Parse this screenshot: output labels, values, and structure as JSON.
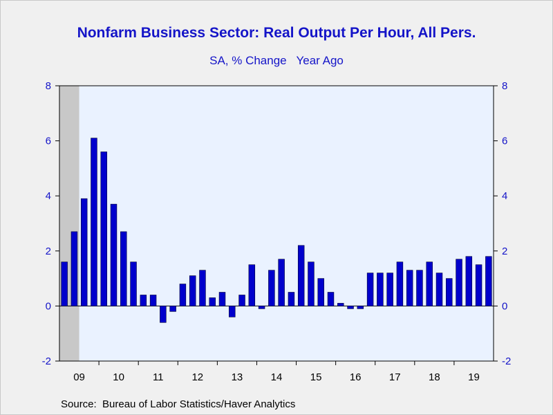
{
  "chart_data": {
    "type": "bar",
    "title": "Nonfarm Business Sector: Real Output Per Hour, All Pers.",
    "subtitle": "SA, % Change   Year Ago",
    "source": "Source:  Bureau of Labor Statistics/Haver Analytics",
    "ylim": [
      -2,
      8
    ],
    "yticks": [
      -2,
      0,
      2,
      4,
      6,
      8
    ],
    "year_labels": [
      "09",
      "10",
      "11",
      "12",
      "13",
      "14",
      "15",
      "16",
      "17",
      "18",
      "19"
    ],
    "start_quarter": "2009-Q1",
    "recession_quarters": 2,
    "values": [
      1.6,
      2.7,
      3.9,
      6.1,
      5.6,
      3.7,
      2.7,
      1.6,
      0.4,
      0.4,
      -0.6,
      -0.2,
      0.8,
      1.1,
      1.3,
      0.3,
      0.5,
      -0.4,
      0.4,
      1.5,
      -0.1,
      1.3,
      1.7,
      0.5,
      2.2,
      1.6,
      1.0,
      0.5,
      0.1,
      -0.1,
      -0.1,
      1.2,
      1.2,
      1.2,
      1.6,
      1.3,
      1.3,
      1.6,
      1.2,
      1.0,
      1.7,
      1.8,
      1.5,
      1.8
    ],
    "colors": {
      "bar": "#0000cc",
      "axis": "#1414c8",
      "plot_bg": "#eaf2ff",
      "recession": "#c8c8c8"
    }
  }
}
